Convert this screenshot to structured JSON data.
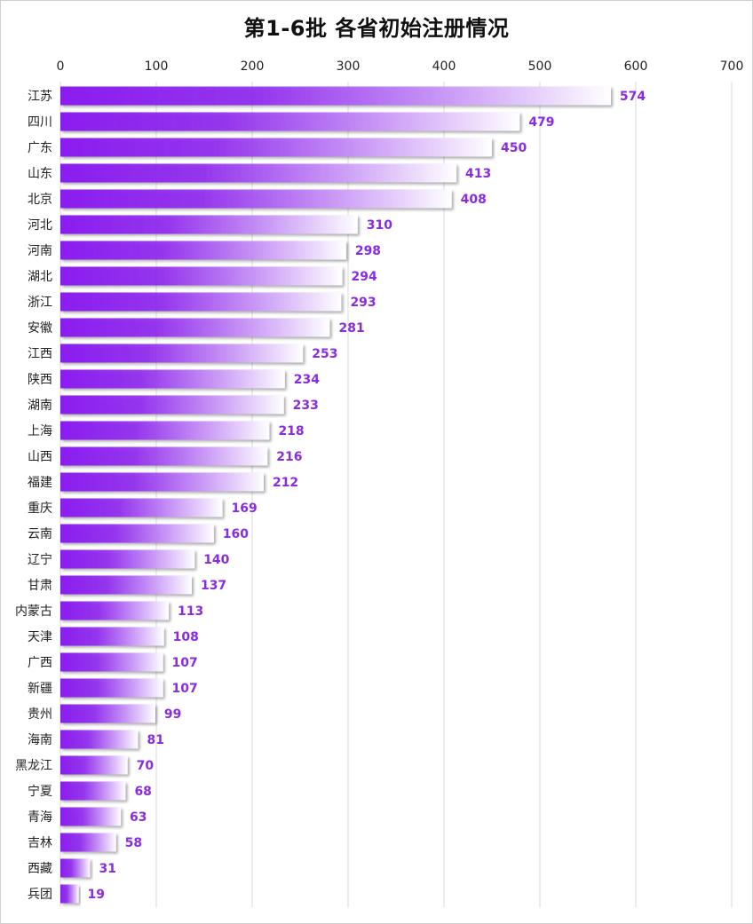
{
  "chart_data": {
    "type": "bar",
    "orientation": "horizontal",
    "title": "第1-6批 各省初始注册情况",
    "xlabel": "",
    "ylabel": "",
    "xlim": [
      0,
      700
    ],
    "ticks": [
      0,
      100,
      200,
      300,
      400,
      500,
      600,
      700
    ],
    "grid": true,
    "categories": [
      "江苏",
      "四川",
      "广东",
      "山东",
      "北京",
      "河北",
      "河南",
      "湖北",
      "浙江",
      "安徽",
      "江西",
      "陕西",
      "湖南",
      "上海",
      "山西",
      "福建",
      "重庆",
      "云南",
      "辽宁",
      "甘肃",
      "内蒙古",
      "天津",
      "广西",
      "新疆",
      "贵州",
      "海南",
      "黑龙江",
      "宁夏",
      "青海",
      "吉林",
      "西藏",
      "兵团"
    ],
    "values": [
      574,
      479,
      450,
      413,
      408,
      310,
      298,
      294,
      293,
      281,
      253,
      234,
      233,
      218,
      216,
      212,
      169,
      160,
      140,
      137,
      113,
      108,
      107,
      107,
      99,
      81,
      70,
      68,
      63,
      58,
      31,
      19
    ],
    "colors": {
      "bar_start": "#8b1cf0",
      "bar_end": "#ffffff",
      "label": "#8a2be2",
      "grid": "#d9d9d9"
    }
  }
}
